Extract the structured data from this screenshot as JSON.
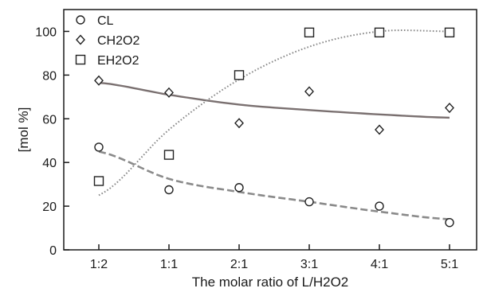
{
  "chart_data": {
    "type": "scatter",
    "xlabel": "The molar ratio of L/H2O2",
    "ylabel": "[mol %]",
    "categories": [
      "1:2",
      "1:1",
      "2:1",
      "3:1",
      "4:1",
      "5:1"
    ],
    "ylim": [
      0,
      110
    ],
    "yticks": [
      0,
      20,
      40,
      60,
      80,
      100
    ],
    "grid": false,
    "legend_position": "top-left",
    "series": [
      {
        "name": "CL",
        "marker": "circle",
        "values": [
          47,
          27.5,
          28.5,
          22,
          20,
          12.5
        ]
      },
      {
        "name": "CH2O2",
        "marker": "diamond",
        "values": [
          77.5,
          72,
          58,
          72.5,
          55,
          65
        ]
      },
      {
        "name": "EH2O2",
        "marker": "square",
        "values": [
          31.5,
          43.5,
          80,
          99.5,
          99.5,
          99.5
        ]
      }
    ],
    "trendlines": [
      {
        "series": "CL",
        "style": "dashed",
        "color": "#8a8a8a",
        "values": [
          45,
          32.5,
          26.5,
          22,
          17.5,
          14
        ]
      },
      {
        "series": "CH2O2",
        "style": "solid",
        "color": "#7a7070",
        "values": [
          76.5,
          71,
          66.5,
          64,
          62,
          60.5
        ]
      },
      {
        "series": "EH2O2",
        "style": "dotted",
        "color": "#8a8a8a",
        "values": [
          25,
          55,
          78,
          93,
          100,
          100
        ]
      }
    ]
  }
}
